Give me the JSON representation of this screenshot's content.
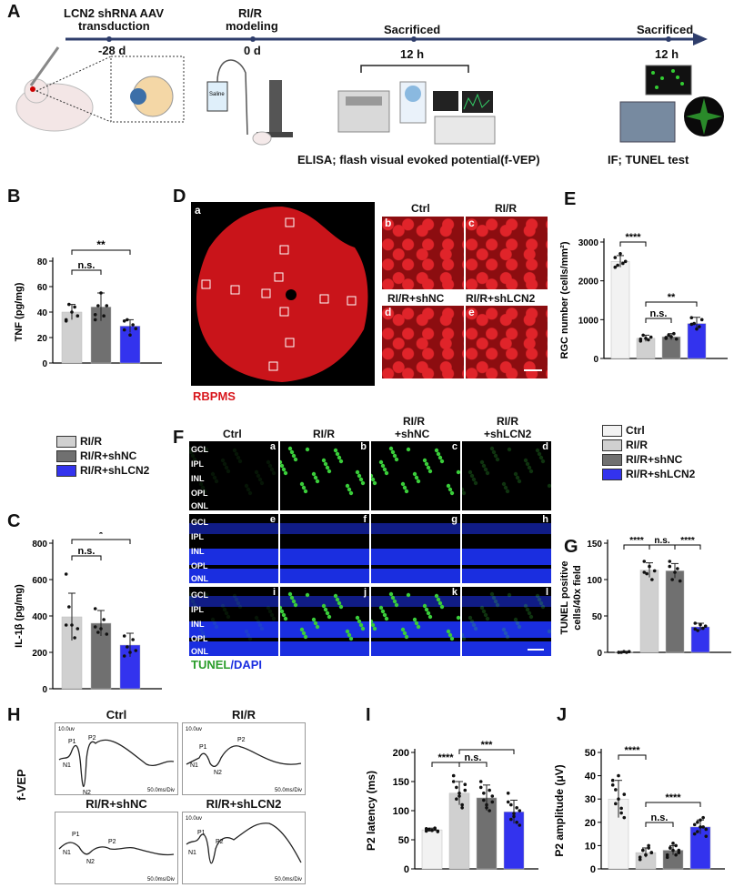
{
  "panelA": {
    "letter": "A",
    "step1_title": "LCN2 shRNA AAV",
    "step1_sub": "transduction",
    "step1_time": "-28 d",
    "step2_title": "RI/R",
    "step2_sub": "modeling",
    "step2_time": "0 d",
    "step3_title": "Sacrificed",
    "step3_time": "12 h",
    "step4_title": "Sacrificed",
    "step4_time": "12 h",
    "caption_left": "ELISA; flash visual evoked potential(f-VEP)",
    "caption_right": "IF; TUNEL test",
    "saline_label": "Saline"
  },
  "panelB": {
    "letter": "B",
    "ylabel": "TNF (pg/mg)",
    "yticks": [
      "0",
      "20",
      "40",
      "60",
      "80"
    ],
    "sig_left": "n.s.",
    "sig_right": "**"
  },
  "panelC": {
    "letter": "C",
    "ylabel": "IL-1β (pg/mg)",
    "yticks": [
      "0",
      "200",
      "400",
      "600",
      "800"
    ],
    "sig_left": "n.s.",
    "sig_right": "*"
  },
  "legendBC": [
    "RI/R",
    "RI/R+shNC",
    "RI/R+shLCN2"
  ],
  "panelD": {
    "letter": "D",
    "tiles": [
      "a",
      "b",
      "c",
      "d",
      "e"
    ],
    "labels": [
      "Ctrl",
      "RI/R",
      "RI/R+shNC",
      "RI/R+shLCN2"
    ],
    "stain": "RBPMS"
  },
  "panelE": {
    "letter": "E",
    "ylabel": "RGC number (cells/mm²)",
    "yticks": [
      "0",
      "1000",
      "2000",
      "3000"
    ],
    "sig1": "****",
    "sig2": "n.s.",
    "sig3": "**"
  },
  "panelF": {
    "letter": "F",
    "columns": [
      "Ctrl",
      "RI/R",
      "RI/R\n+shNC",
      "RI/R\n+shLCN2"
    ],
    "col_labels": [
      "Ctrl",
      "RI/R",
      "RI/R",
      "+shNC",
      "RI/R",
      "+shLCN2"
    ],
    "tile_letters": [
      "a",
      "b",
      "c",
      "d",
      "e",
      "f",
      "g",
      "h",
      "i",
      "j",
      "k",
      "l"
    ],
    "layers": [
      "GCL",
      "IPL",
      "INL",
      "OPL",
      "ONL"
    ],
    "stain_tunel": "TUNEL",
    "stain_dapi": "/DAPI"
  },
  "legendG": [
    "Ctrl",
    "RI/R",
    "RI/R+shNC",
    "RI/R+shLCN2"
  ],
  "panelG": {
    "letter": "G",
    "ylabel1": "TUNEL positive",
    "ylabel2": "cells/40x field",
    "yticks": [
      "0",
      "50",
      "100",
      "150"
    ],
    "sig1": "****",
    "sig2": "n.s.",
    "sig3": "****"
  },
  "panelH": {
    "letter": "H",
    "side_label": "f-VEP",
    "traces": [
      {
        "title": "Ctrl",
        "scale": "10.0uv",
        "time": "50.0ms/Div",
        "peaks": [
          "P1",
          "P2",
          "N1",
          "N2"
        ]
      },
      {
        "title": "RI/R",
        "scale": "10.0uv",
        "time": "50.0ms/Div",
        "peaks": [
          "P1",
          "P2",
          "N1",
          "N2"
        ]
      },
      {
        "title": "RI/R+shNC",
        "scale": "",
        "time": "50.0ms/Div",
        "peaks": [
          "P1",
          "P2",
          "N1",
          "N2"
        ]
      },
      {
        "title": "RI/R+shLCN2",
        "scale": "10.0uv",
        "time": "50.0ms/Div",
        "peaks": [
          "P1",
          "P2",
          "N1"
        ]
      }
    ]
  },
  "panelI": {
    "letter": "I",
    "ylabel": "P2 latency (ms)",
    "yticks": [
      "0",
      "50",
      "100",
      "150",
      "200"
    ],
    "sig1": "****",
    "sig2": "n.s.",
    "sig3": "***"
  },
  "panelJ": {
    "letter": "J",
    "ylabel": "P2 amplitude (μV)",
    "yticks": [
      "0",
      "10",
      "20",
      "30",
      "40",
      "50"
    ],
    "sig1": "****",
    "sig2": "n.s.",
    "sig3": "****"
  },
  "colors": {
    "ctrl": "#f2f2f2",
    "rir": "#d0d0d0",
    "shnc": "#707070",
    "shlcn2": "#3333ee",
    "arrow": "#2e3d6b",
    "rbpms": "#d8161c",
    "tunel": "#3acd3a",
    "dapi": "#1a2ee0"
  },
  "chart_data": [
    {
      "panel": "B",
      "type": "bar",
      "ylim": [
        0,
        80
      ],
      "categories": [
        "RI/R",
        "RI/R+shNC",
        "RI/R+shLCN2"
      ],
      "values": [
        40,
        44,
        29
      ],
      "errors": [
        6,
        11,
        5
      ],
      "points": [
        [
          34,
          46,
          40,
          44,
          37,
          33
        ],
        [
          34,
          45,
          55,
          37,
          45,
          38
        ],
        [
          26,
          34,
          22,
          30,
          27,
          33
        ]
      ]
    },
    {
      "panel": "C",
      "type": "bar",
      "ylim": [
        0,
        800
      ],
      "categories": [
        "RI/R",
        "RI/R+shNC",
        "RI/R+shLCN2"
      ],
      "values": [
        395,
        360,
        240
      ],
      "errors": [
        130,
        70,
        65
      ],
      "points": [
        [
          630,
          450,
          350,
          280,
          330,
          350
        ],
        [
          440,
          310,
          330,
          380,
          300,
          340
        ],
        [
          290,
          230,
          200,
          270,
          210,
          180
        ]
      ]
    },
    {
      "panel": "E",
      "type": "bar",
      "ylim": [
        0,
        3000
      ],
      "categories": [
        "Ctrl",
        "RI/R",
        "RI/R+shNC",
        "RI/R+shLCN2"
      ],
      "values": [
        2500,
        520,
        560,
        900
      ],
      "errors": [
        150,
        80,
        80,
        160
      ],
      "points": [
        [
          2600,
          2400,
          2700,
          2450,
          2500,
          2350
        ],
        [
          450,
          600,
          520,
          480,
          550,
          500
        ],
        [
          520,
          600,
          560,
          640,
          500,
          540
        ],
        [
          1050,
          900,
          760,
          820,
          1000,
          880
        ]
      ]
    },
    {
      "panel": "G",
      "type": "bar",
      "ylim": [
        0,
        150
      ],
      "categories": [
        "Ctrl",
        "RI/R",
        "RI/R+shNC",
        "RI/R+shLCN2"
      ],
      "values": [
        0.5,
        113,
        112,
        35
      ],
      "errors": [
        0.5,
        10,
        10,
        5
      ],
      "points": [
        [
          0,
          0,
          1,
          0,
          1,
          0
        ],
        [
          125,
          108,
          118,
          100,
          112,
          110
        ],
        [
          125,
          100,
          110,
          115,
          98,
          118
        ],
        [
          40,
          30,
          38,
          33,
          36,
          32
        ]
      ]
    },
    {
      "panel": "I",
      "type": "bar",
      "ylim": [
        0,
        200
      ],
      "categories": [
        "Ctrl",
        "RI/R",
        "RI/R+shNC",
        "RI/R+shLCN2"
      ],
      "values": [
        67,
        130,
        122,
        98
      ],
      "errors": [
        3,
        20,
        22,
        20
      ],
      "points": [
        [
          65,
          68,
          66,
          70,
          64,
          69,
          67,
          66,
          68,
          65
        ],
        [
          160,
          140,
          125,
          110,
          135,
          150,
          120,
          130,
          105,
          145
        ],
        [
          150,
          130,
          110,
          100,
          125,
          140,
          118,
          105,
          135,
          115
        ],
        [
          130,
          110,
          95,
          80,
          100,
          115,
          85,
          90,
          105,
          75
        ]
      ]
    },
    {
      "panel": "J",
      "type": "bar",
      "ylim": [
        0,
        50
      ],
      "categories": [
        "Ctrl",
        "RI/R",
        "RI/R+shNC",
        "RI/R+shLCN2"
      ],
      "values": [
        30,
        7,
        8,
        18
      ],
      "errors": [
        8,
        2,
        2,
        3
      ],
      "points": [
        [
          38,
          34,
          30,
          26,
          22,
          36,
          28,
          40,
          24,
          32
        ],
        [
          5,
          8,
          6,
          9,
          7,
          4,
          8,
          6,
          10,
          7
        ],
        [
          6,
          9,
          8,
          10,
          7,
          5,
          9,
          11,
          6,
          8
        ],
        [
          15,
          20,
          18,
          22,
          17,
          19,
          16,
          21,
          18,
          14
        ]
      ]
    }
  ]
}
